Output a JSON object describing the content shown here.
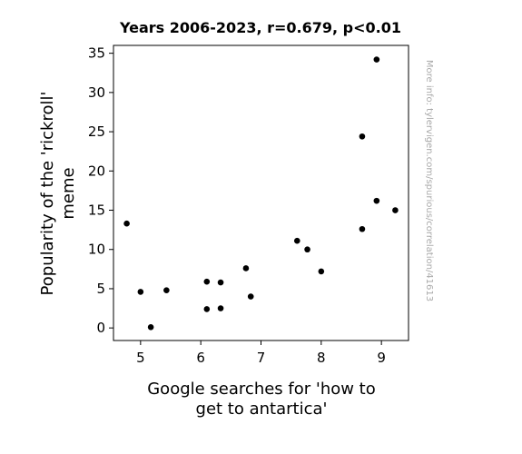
{
  "chart_data": {
    "type": "scatter",
    "title": "Years 2006-2023, r=0.679, p<0.01",
    "xlabel": [
      "Google searches for 'how to",
      "get to antartica'"
    ],
    "ylabel": [
      "Popularity of the 'rickroll'",
      "meme"
    ],
    "xlim": [
      4.55,
      9.45
    ],
    "ylim": [
      -1.6,
      36
    ],
    "xticks": [
      5,
      6,
      7,
      8,
      9
    ],
    "yticks": [
      0,
      5,
      10,
      15,
      20,
      25,
      30,
      35
    ],
    "grid": false,
    "point_color": "#000000",
    "points": [
      {
        "x": 4.77,
        "y": 13.3
      },
      {
        "x": 5.0,
        "y": 4.6
      },
      {
        "x": 5.17,
        "y": 0.1
      },
      {
        "x": 5.43,
        "y": 4.8
      },
      {
        "x": 6.1,
        "y": 2.4
      },
      {
        "x": 6.1,
        "y": 5.9
      },
      {
        "x": 6.33,
        "y": 2.5
      },
      {
        "x": 6.33,
        "y": 5.8
      },
      {
        "x": 6.75,
        "y": 7.6
      },
      {
        "x": 6.83,
        "y": 4.0
      },
      {
        "x": 7.6,
        "y": 11.1
      },
      {
        "x": 7.77,
        "y": 10.0
      },
      {
        "x": 8.0,
        "y": 7.2
      },
      {
        "x": 8.68,
        "y": 24.4
      },
      {
        "x": 8.68,
        "y": 12.6
      },
      {
        "x": 8.92,
        "y": 34.2
      },
      {
        "x": 8.92,
        "y": 16.2
      },
      {
        "x": 9.23,
        "y": 15.0
      }
    ]
  },
  "side_note": "More info: tylervigen.com/spurious/correlation/41613"
}
